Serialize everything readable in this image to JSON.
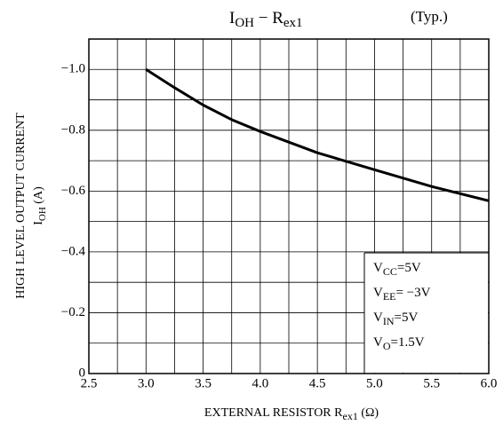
{
  "chart_data": {
    "type": "line",
    "title_parts": [
      "I",
      "OH",
      " − R",
      "ex1"
    ],
    "note": "(Typ.)",
    "ylabel_line1": "HIGH LEVEL OUTPUT CURRENT",
    "ylabel_parts": [
      "I",
      "OH",
      "  (A)"
    ],
    "xlabel_parts": [
      "EXTERNAL RESISTOR  R",
      "ex1",
      "  (Ω)"
    ],
    "conditions": [
      [
        "V",
        "CC",
        "=5V"
      ],
      [
        "V",
        "EE",
        "= −3V"
      ],
      [
        "V",
        "IN",
        "=5V"
      ],
      [
        "V",
        "O",
        "=1.5V"
      ]
    ],
    "x": [
      3.0,
      3.25,
      3.5,
      3.75,
      4.0,
      4.5,
      5.0,
      5.5,
      6.0
    ],
    "series": [
      {
        "color": "#000000",
        "values": [
          -1.0,
          -0.94,
          -0.883,
          -0.835,
          -0.796,
          -0.726,
          -0.67,
          -0.615,
          -0.568
        ]
      }
    ],
    "xlim": [
      2.5,
      6.0
    ],
    "ylim": [
      0,
      -1.1
    ],
    "xticks": [
      {
        "value": 2.5,
        "label": "2.5"
      },
      {
        "value": 3,
        "label": "3.0"
      },
      {
        "value": 3.5,
        "label": "3.5"
      },
      {
        "value": 4,
        "label": "4.0"
      },
      {
        "value": 4.5,
        "label": "4.5"
      },
      {
        "value": 5,
        "label": "5.0"
      },
      {
        "value": 5.5,
        "label": "5.5"
      },
      {
        "value": 6,
        "label": "6.0"
      }
    ],
    "yticks": [
      0,
      {
        "value": -0.2,
        "label": "−0.2"
      },
      {
        "value": -0.4,
        "label": "−0.4"
      },
      {
        "value": -0.6,
        "label": "−0.6"
      },
      {
        "value": -0.8,
        "label": "−0.8"
      },
      {
        "value": -1.0,
        "label": "−1.0"
      }
    ],
    "xminor_ticks": [
      2.75,
      3.25,
      3.75,
      4.25,
      4.75,
      5.25,
      5.75
    ],
    "yminor_ticks": [
      -0.1,
      -0.3,
      -0.5,
      -0.7,
      -0.9,
      -1.1
    ],
    "grid": true
  }
}
